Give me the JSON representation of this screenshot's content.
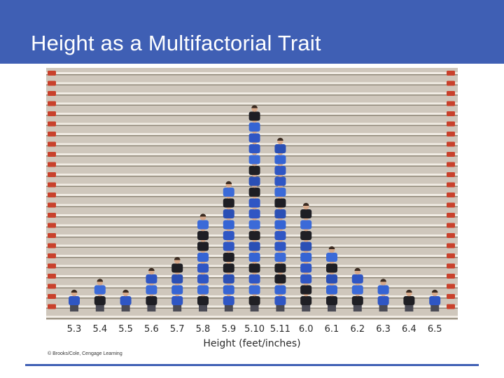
{
  "slide": {
    "title": "Height as a Multifactorial Trait"
  },
  "figure": {
    "x_tick_labels": [
      "5.3",
      "5.4",
      "5.5",
      "5.6",
      "5.7",
      "5.8",
      "5.9",
      "5.10",
      "5.11",
      "6.0",
      "6.1",
      "6.2",
      "6.3",
      "6.4",
      "6.5"
    ],
    "x_axis_title": "Height (feet/inches)",
    "credit": "© Brooks/Cole, Cengage Learning",
    "column_counts": [
      1,
      2,
      1,
      3,
      4,
      8,
      11,
      18,
      15,
      9,
      5,
      3,
      2,
      1,
      1
    ]
  },
  "colors": {
    "accent": "#3f5fb4",
    "shirt": "#2f56c4",
    "bleacher": "#cfc7bc",
    "row_marker": "#c9412c"
  }
}
